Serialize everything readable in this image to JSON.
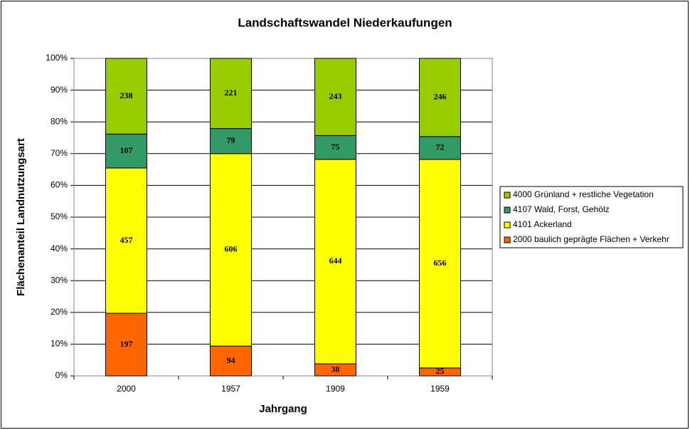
{
  "chart_data": {
    "type": "bar",
    "stacking": "percent",
    "title": "Landschaftswandel Niederkaufungen",
    "x_label": "Jahrgang",
    "y_label": "Flächenanteil Landnutzungsart",
    "categories": [
      "2000",
      "1957",
      "1909",
      "1959"
    ],
    "series": [
      {
        "name": "2000 baulich geprägte Flächen + Verkehr",
        "color": "#ff6600",
        "values": [
          197,
          94,
          38,
          25
        ]
      },
      {
        "name": "4101 Ackerland",
        "color": "#ffff00",
        "values": [
          457,
          606,
          644,
          656
        ]
      },
      {
        "name": "4107 Wald, Forst, Gehölz",
        "color": "#339966",
        "values": [
          107,
          79,
          75,
          72
        ]
      },
      {
        "name": "4000 Grünland + restliche Vegetation",
        "color": "#99cc00",
        "values": [
          238,
          221,
          243,
          246
        ]
      }
    ],
    "ylim": [
      0,
      100
    ],
    "yticks": [
      {
        "value": 0,
        "label": "0%"
      },
      {
        "value": 10,
        "label": "10%"
      },
      {
        "value": 20,
        "label": "20%"
      },
      {
        "value": 30,
        "label": "30%"
      },
      {
        "value": 40,
        "label": "40%"
      },
      {
        "value": 50,
        "label": "50%"
      },
      {
        "value": 60,
        "label": "60%"
      },
      {
        "value": 70,
        "label": "70%"
      },
      {
        "value": 80,
        "label": "80%"
      },
      {
        "value": 90,
        "label": "90%"
      },
      {
        "value": 100,
        "label": "100%"
      }
    ],
    "grid": true,
    "legend": "right"
  }
}
